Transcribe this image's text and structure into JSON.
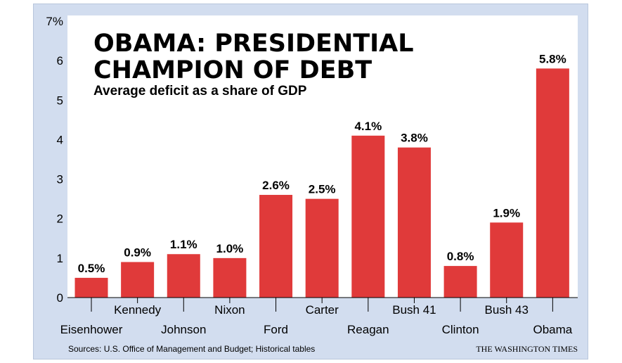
{
  "chart_data": {
    "type": "bar",
    "title_line1": "OBAMA: PRESIDENTIAL",
    "title_line2": "CHAMPION OF DEBT",
    "subtitle": "Average deficit as a share of GDP",
    "categories": [
      "Eisenhower",
      "Kennedy",
      "Johnson",
      "Nixon",
      "Ford",
      "Carter",
      "Reagan",
      "Bush 41",
      "Clinton",
      "Bush 43",
      "Obama"
    ],
    "values": [
      0.5,
      0.9,
      1.1,
      1.0,
      2.6,
      2.5,
      4.1,
      3.8,
      0.8,
      1.9,
      5.8
    ],
    "value_labels": [
      "0.5%",
      "0.9%",
      "1.1%",
      "1.0%",
      "2.6%",
      "2.5%",
      "4.1%",
      "3.8%",
      "0.8%",
      "1.9%",
      "5.8%"
    ],
    "ylim": [
      0,
      7
    ],
    "yticks": [
      "0",
      "1",
      "2",
      "3",
      "4",
      "5",
      "6",
      "7%"
    ],
    "bar_color": "#e03a3a",
    "source": "Sources: U.S. Office of Management and Budget; Historical tables",
    "credit": "THE WASHINGTON TIMES"
  }
}
